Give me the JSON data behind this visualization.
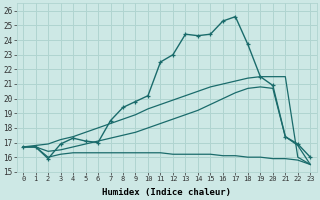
{
  "xlabel": "Humidex (Indice chaleur)",
  "ylabel": "",
  "bg_color": "#cde8e5",
  "grid_color": "#b0d4d0",
  "line_color": "#1a6b6b",
  "xlim": [
    -0.5,
    23.5
  ],
  "ylim": [
    15,
    26.5
  ],
  "yticks": [
    15,
    16,
    17,
    18,
    19,
    20,
    21,
    22,
    23,
    24,
    25,
    26
  ],
  "xticks": [
    0,
    1,
    2,
    3,
    4,
    5,
    6,
    7,
    8,
    9,
    10,
    11,
    12,
    13,
    14,
    15,
    16,
    17,
    18,
    19,
    20,
    21,
    22,
    23
  ],
  "main_line": [
    16.7,
    16.7,
    15.9,
    16.9,
    17.3,
    17.1,
    17.0,
    18.5,
    19.4,
    19.8,
    20.2,
    22.5,
    23.0,
    24.4,
    24.3,
    24.4,
    25.3,
    25.6,
    23.7,
    21.5,
    20.9,
    17.4,
    16.9,
    16.0
  ],
  "line_flat": [
    16.7,
    16.7,
    16.0,
    16.2,
    16.3,
    16.3,
    16.3,
    16.3,
    16.3,
    16.3,
    16.3,
    16.3,
    16.2,
    16.2,
    16.2,
    16.2,
    16.1,
    16.1,
    16.0,
    16.0,
    15.9,
    15.9,
    15.8,
    15.5
  ],
  "line_upper": [
    16.7,
    16.8,
    16.9,
    17.2,
    17.4,
    17.7,
    18.0,
    18.3,
    18.6,
    18.9,
    19.3,
    19.6,
    19.9,
    20.2,
    20.5,
    20.8,
    21.0,
    21.2,
    21.4,
    21.5,
    21.5,
    21.5,
    16.0,
    15.5
  ],
  "line_mid": [
    16.7,
    16.7,
    16.4,
    16.5,
    16.7,
    16.9,
    17.1,
    17.3,
    17.5,
    17.7,
    18.0,
    18.3,
    18.6,
    18.9,
    19.2,
    19.6,
    20.0,
    20.4,
    20.7,
    20.8,
    20.7,
    17.4,
    16.8,
    15.5
  ]
}
